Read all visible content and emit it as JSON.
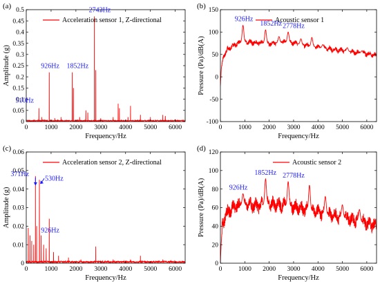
{
  "chart_data": [
    {
      "id": "a",
      "type": "line",
      "panel_label": "(a)",
      "legend": "Acceleration sensor 1, Z-directional",
      "xlabel": "Frequency/Hz",
      "ylabel": "Amplitude (g)",
      "xlim": [
        0,
        6400
      ],
      "ylim": [
        0,
        0.5
      ],
      "xticks": [
        0,
        1000,
        2000,
        3000,
        4000,
        5000,
        6000
      ],
      "yticks": [
        0,
        0.05,
        0.1,
        0.15,
        0.2,
        0.25,
        0.3,
        0.35,
        0.4,
        0.45,
        0.5
      ],
      "ytick_labels": [
        "0",
        "0.05",
        "0.1",
        "0.15",
        "0.2",
        "0.25",
        "0.3",
        "0.35",
        "0.4",
        "0.45",
        "0.5"
      ],
      "color": "#ff0000",
      "kind": "spikes",
      "baseline": 0.003,
      "peaks": [
        {
          "x": 510,
          "y": 0.06
        },
        {
          "x": 620,
          "y": 0.02
        },
        {
          "x": 926,
          "y": 0.22
        },
        {
          "x": 1150,
          "y": 0.015
        },
        {
          "x": 1400,
          "y": 0.02
        },
        {
          "x": 1852,
          "y": 0.22
        },
        {
          "x": 1900,
          "y": 0.15
        },
        {
          "x": 2150,
          "y": 0.02
        },
        {
          "x": 2400,
          "y": 0.05
        },
        {
          "x": 2480,
          "y": 0.04
        },
        {
          "x": 2743,
          "y": 0.47
        },
        {
          "x": 2800,
          "y": 0.23
        },
        {
          "x": 3000,
          "y": 0.015
        },
        {
          "x": 3500,
          "y": 0.02
        },
        {
          "x": 3700,
          "y": 0.08
        },
        {
          "x": 3750,
          "y": 0.06
        },
        {
          "x": 4100,
          "y": 0.02
        },
        {
          "x": 4200,
          "y": 0.07
        },
        {
          "x": 4600,
          "y": 0.03
        },
        {
          "x": 5000,
          "y": 0.02
        },
        {
          "x": 5500,
          "y": 0.03
        },
        {
          "x": 5600,
          "y": 0.025
        },
        {
          "x": 6000,
          "y": 0.01
        }
      ],
      "annotations": [
        {
          "text": "510Hz",
          "x": 510,
          "y": 0.06
        },
        {
          "text": "926Hz",
          "x": 926,
          "y": 0.22
        },
        {
          "text": "1852Hz",
          "x": 1852,
          "y": 0.22
        },
        {
          "text": "2743Hz",
          "x": 2743,
          "y": 0.47
        }
      ]
    },
    {
      "id": "b",
      "type": "line",
      "panel_label": "(b)",
      "legend": "Acoustic sensor 1",
      "xlabel": "Frequency/Hz",
      "ylabel": "Pressure (Pa)/dB(A)",
      "xlim": [
        0,
        6400
      ],
      "ylim": [
        -100,
        150
      ],
      "xticks": [
        0,
        1000,
        2000,
        3000,
        4000,
        5000,
        6000
      ],
      "yticks": [
        -100,
        -50,
        0,
        50,
        100,
        150
      ],
      "ytick_labels": [
        "-100",
        "-50",
        "0",
        "50",
        "100",
        "150"
      ],
      "color": "#ff0000",
      "kind": "spectrum",
      "envelope": [
        [
          0,
          -20
        ],
        [
          40,
          20
        ],
        [
          120,
          45
        ],
        [
          300,
          62
        ],
        [
          600,
          72
        ],
        [
          926,
          78
        ],
        [
          1500,
          76
        ],
        [
          2000,
          74
        ],
        [
          2778,
          78
        ],
        [
          3500,
          70
        ],
        [
          4500,
          62
        ],
        [
          5500,
          55
        ],
        [
          6400,
          48
        ]
      ],
      "ripple": 9,
      "peaks": [
        {
          "x": 926,
          "y": 115
        },
        {
          "x": 1852,
          "y": 105
        },
        {
          "x": 2400,
          "y": 90
        },
        {
          "x": 2778,
          "y": 100
        },
        {
          "x": 3300,
          "y": 85
        },
        {
          "x": 3750,
          "y": 88
        },
        {
          "x": 4200,
          "y": 72
        },
        {
          "x": 5200,
          "y": 65
        },
        {
          "x": 5800,
          "y": 58
        }
      ],
      "annotations": [
        {
          "text": "926Hz",
          "x": 926,
          "y": 115
        },
        {
          "text": "1852Hz",
          "x": 1852,
          "y": 105
        },
        {
          "text": "2778Hz",
          "x": 2778,
          "y": 100
        }
      ]
    },
    {
      "id": "c",
      "type": "line",
      "panel_label": "(c)",
      "legend": "Acceleration sensor 2, Z-directional",
      "xlabel": "Frequency/Hz",
      "ylabel": "Amplitude (g)",
      "xlim": [
        0,
        6400
      ],
      "ylim": [
        0,
        0.06
      ],
      "xticks": [
        0,
        1000,
        2000,
        3000,
        4000,
        5000,
        6000
      ],
      "yticks": [
        0,
        0.01,
        0.02,
        0.03,
        0.04,
        0.05,
        0.06
      ],
      "ytick_labels": [
        "0",
        "0.01",
        "0.02",
        "0.03",
        "0.04",
        "0.05",
        "0.06"
      ],
      "color": "#ff0000",
      "kind": "spikes",
      "baseline": 0.0006,
      "peaks": [
        {
          "x": 80,
          "y": 0.019
        },
        {
          "x": 150,
          "y": 0.015
        },
        {
          "x": 220,
          "y": 0.012
        },
        {
          "x": 300,
          "y": 0.01
        },
        {
          "x": 371,
          "y": 0.047
        },
        {
          "x": 420,
          "y": 0.02
        },
        {
          "x": 530,
          "y": 0.045
        },
        {
          "x": 600,
          "y": 0.015
        },
        {
          "x": 700,
          "y": 0.01
        },
        {
          "x": 800,
          "y": 0.008
        },
        {
          "x": 926,
          "y": 0.024
        },
        {
          "x": 1100,
          "y": 0.006
        },
        {
          "x": 1300,
          "y": 0.004
        },
        {
          "x": 1700,
          "y": 0.003
        },
        {
          "x": 2200,
          "y": 0.002
        },
        {
          "x": 2800,
          "y": 0.009
        },
        {
          "x": 3500,
          "y": 0.002
        },
        {
          "x": 4200,
          "y": 0.002
        },
        {
          "x": 4600,
          "y": 0.004
        },
        {
          "x": 5500,
          "y": 0.002
        }
      ],
      "annotations": [
        {
          "text": "371Hz",
          "x": 371,
          "y": 0.047
        },
        {
          "text": "530Hz",
          "x": 530,
          "y": 0.045
        },
        {
          "text": "926Hz",
          "x": 926,
          "y": 0.024
        }
      ]
    },
    {
      "id": "d",
      "type": "line",
      "panel_label": "(d)",
      "legend": "Acoustic sensor 2",
      "xlabel": "Frequency/Hz",
      "ylabel": "Pressure (Pa)/dB(A)",
      "xlim": [
        0,
        6400
      ],
      "ylim": [
        0,
        120
      ],
      "xticks": [
        0,
        1000,
        2000,
        3000,
        4000,
        5000,
        6000
      ],
      "yticks": [
        0,
        20,
        40,
        60,
        80,
        100,
        120
      ],
      "ytick_labels": [
        "0",
        "20",
        "40",
        "60",
        "80",
        "100",
        "120"
      ],
      "color": "#ff0000",
      "kind": "spectrum",
      "envelope": [
        [
          0,
          0
        ],
        [
          30,
          20
        ],
        [
          80,
          40
        ],
        [
          200,
          52
        ],
        [
          500,
          60
        ],
        [
          926,
          63
        ],
        [
          1500,
          62
        ],
        [
          2000,
          64
        ],
        [
          2778,
          62
        ],
        [
          3500,
          58
        ],
        [
          4500,
          52
        ],
        [
          5500,
          47
        ],
        [
          6400,
          40
        ]
      ],
      "ripple": 12,
      "peaks": [
        {
          "x": 926,
          "y": 75
        },
        {
          "x": 1852,
          "y": 91
        },
        {
          "x": 2778,
          "y": 88
        },
        {
          "x": 3650,
          "y": 84
        },
        {
          "x": 4300,
          "y": 72
        },
        {
          "x": 5000,
          "y": 63
        },
        {
          "x": 5700,
          "y": 58
        }
      ],
      "annotations": [
        {
          "text": "926Hz",
          "x": 926,
          "y": 75
        },
        {
          "text": "1852Hz",
          "x": 1852,
          "y": 91
        },
        {
          "text": "2778Hz",
          "x": 2778,
          "y": 88
        }
      ]
    }
  ]
}
